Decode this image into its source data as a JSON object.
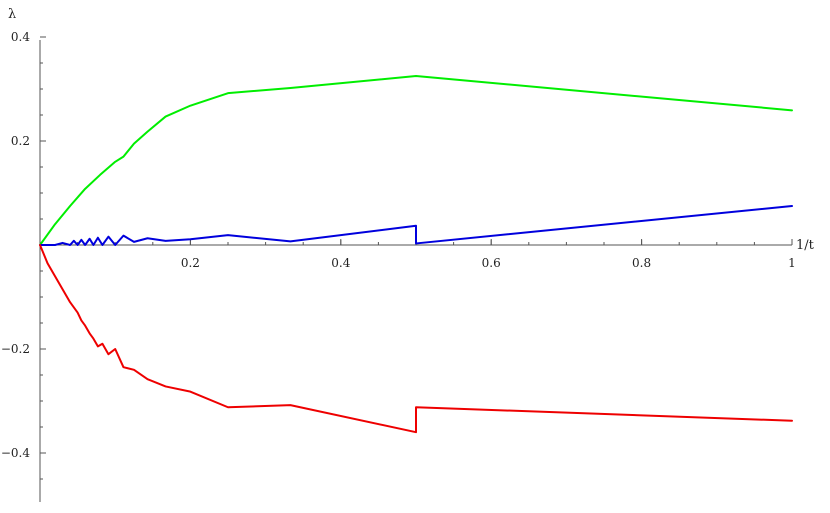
{
  "chart_data": {
    "type": "line",
    "title": "",
    "xlabel": "1/t",
    "ylabel": "λ",
    "xlim": [
      0,
      1
    ],
    "ylim": [
      -0.5,
      0.4
    ],
    "x_ticks": [
      0.2,
      0.4,
      0.6,
      0.8,
      1.0
    ],
    "x_tick_labels": [
      "0.2",
      "0.4",
      "0.6",
      "0.8",
      "1"
    ],
    "y_ticks": [
      0.4,
      0.2,
      -0.2,
      -0.4
    ],
    "y_tick_labels": [
      "0.4",
      "0.2",
      "−0.2",
      "−0.4"
    ],
    "grid": false,
    "legend": "none",
    "series": [
      {
        "color": "#00ee00",
        "points": [
          [
            0,
            0
          ],
          [
            0.02,
            0.04
          ],
          [
            0.04,
            0.075
          ],
          [
            0.06,
            0.108
          ],
          [
            0.08,
            0.135
          ],
          [
            0.1,
            0.16
          ],
          [
            0.111,
            0.17
          ],
          [
            0.125,
            0.195
          ],
          [
            0.143,
            0.218
          ],
          [
            0.167,
            0.247
          ],
          [
            0.2,
            0.268
          ],
          [
            0.25,
            0.292
          ],
          [
            0.333,
            0.302
          ],
          [
            0.5,
            0.325
          ],
          [
            1.0,
            0.259
          ]
        ]
      },
      {
        "color": "#0000dd",
        "points": [
          [
            0,
            0
          ],
          [
            0.02,
            0.0
          ],
          [
            0.03,
            0.004
          ],
          [
            0.04,
            0.0
          ],
          [
            0.045,
            0.008
          ],
          [
            0.05,
            0.0
          ],
          [
            0.055,
            0.01
          ],
          [
            0.06,
            0.0
          ],
          [
            0.066,
            0.012
          ],
          [
            0.071,
            0.0
          ],
          [
            0.077,
            0.014
          ],
          [
            0.083,
            0.0
          ],
          [
            0.091,
            0.016
          ],
          [
            0.1,
            0.0
          ],
          [
            0.111,
            0.018
          ],
          [
            0.125,
            0.006
          ],
          [
            0.143,
            0.013
          ],
          [
            0.167,
            0.008
          ],
          [
            0.2,
            0.011
          ],
          [
            0.25,
            0.019
          ],
          [
            0.333,
            0.007
          ],
          [
            0.5,
            0.037
          ],
          [
            0.5,
            0.003
          ],
          [
            1.0,
            0.075
          ]
        ]
      },
      {
        "color": "#ee0000",
        "points": [
          [
            0,
            0
          ],
          [
            0.01,
            -0.035
          ],
          [
            0.02,
            -0.06
          ],
          [
            0.03,
            -0.085
          ],
          [
            0.04,
            -0.11
          ],
          [
            0.05,
            -0.13
          ],
          [
            0.055,
            -0.145
          ],
          [
            0.06,
            -0.155
          ],
          [
            0.066,
            -0.17
          ],
          [
            0.071,
            -0.18
          ],
          [
            0.077,
            -0.195
          ],
          [
            0.083,
            -0.19
          ],
          [
            0.091,
            -0.21
          ],
          [
            0.1,
            -0.2
          ],
          [
            0.111,
            -0.235
          ],
          [
            0.125,
            -0.24
          ],
          [
            0.143,
            -0.258
          ],
          [
            0.167,
            -0.272
          ],
          [
            0.2,
            -0.282
          ],
          [
            0.25,
            -0.312
          ],
          [
            0.333,
            -0.308
          ],
          [
            0.5,
            -0.36
          ],
          [
            0.5,
            -0.312
          ],
          [
            1.0,
            -0.338
          ]
        ]
      }
    ]
  }
}
